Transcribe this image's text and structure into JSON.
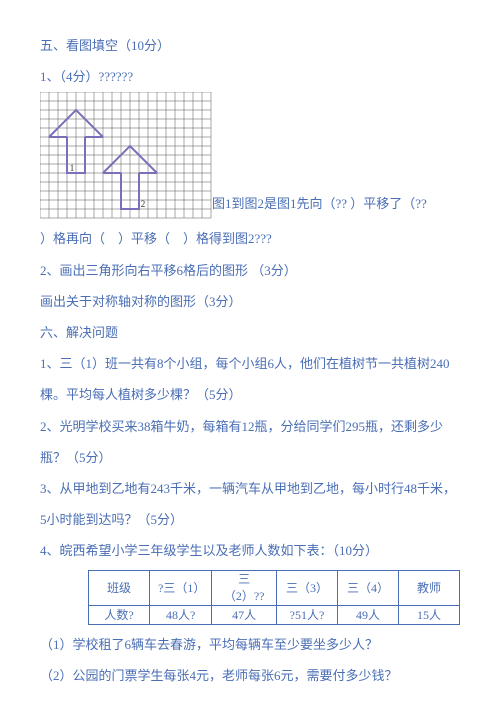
{
  "section5": {
    "heading": "五、看图填空（10分）",
    "q1": {
      "label": "1、（4分）??????",
      "grid": {
        "cols": 19,
        "rows": 14,
        "cell": 9,
        "stroke": "#555555",
        "bg": "#ffffff",
        "shape_stroke": "#7a6fb8",
        "shape_width": 2,
        "label_color": "#333333",
        "shape1": {
          "roof": [
            [
              1,
              5
            ],
            [
              4,
              2
            ],
            [
              7,
              5
            ]
          ],
          "eave_l": [
            [
              1,
              5
            ],
            [
              3,
              5
            ]
          ],
          "eave_r": [
            [
              5,
              5
            ],
            [
              7,
              5
            ]
          ],
          "stem": [
            [
              3,
              5
            ],
            [
              3,
              9
            ],
            [
              5,
              9
            ],
            [
              5,
              5
            ]
          ],
          "num_x": 3.3,
          "num_y": 9.0
        },
        "shape2": {
          "roof": [
            [
              7,
              9
            ],
            [
              10,
              6
            ],
            [
              13,
              9
            ]
          ],
          "eave_l": [
            [
              7,
              9
            ],
            [
              9,
              9
            ]
          ],
          "eave_r": [
            [
              11,
              9
            ],
            [
              13,
              9
            ]
          ],
          "stem": [
            [
              9,
              9
            ],
            [
              9,
              13
            ],
            [
              11,
              13
            ],
            [
              11,
              9
            ]
          ],
          "num_x": 11.2,
          "num_y": 13.0
        }
      },
      "after_grid": "图1到图2是图1先向（?? ）平移了（??",
      "line2": "）格再向（　）平移（　）格得到图2???"
    },
    "q2": "2、画出三角形向右平移6格后的图形 （3分）",
    "q3": "画出关于对称轴对称的图形（3分）"
  },
  "section6": {
    "heading": "六、解决问题",
    "q1": "1、三（1）班一共有8个小组，每个小组6人，他们在植树节一共植树240棵。平均每人植树多少棵？（5分）",
    "q2": "2、光明学校买来38箱牛奶，每箱有12瓶，分给同学们295瓶，还剩多少瓶？（5分）",
    "q3": "3、从甲地到乙地有243千米，一辆汽车从甲地到乙地，每小时行48千米，5小时能到达吗？（5分）",
    "q4": {
      "intro": "4、皖西希望小学三年级学生以及老师人数如下表：（10分）",
      "table": {
        "headers": [
          "班级",
          "?三（1）",
          "三（2）??",
          "三（3）",
          "三（4）",
          "教师"
        ],
        "row_label": "人数?",
        "values": [
          "48人?",
          "47人",
          "?51人?",
          "49人",
          "15人"
        ]
      },
      "p1": "（1）学校租了6辆车去春游，平均每辆车至少要坐多少人？",
      "p2": "（2）公园的门票学生每张4元，老师每张6元，需要付多少钱？"
    }
  }
}
